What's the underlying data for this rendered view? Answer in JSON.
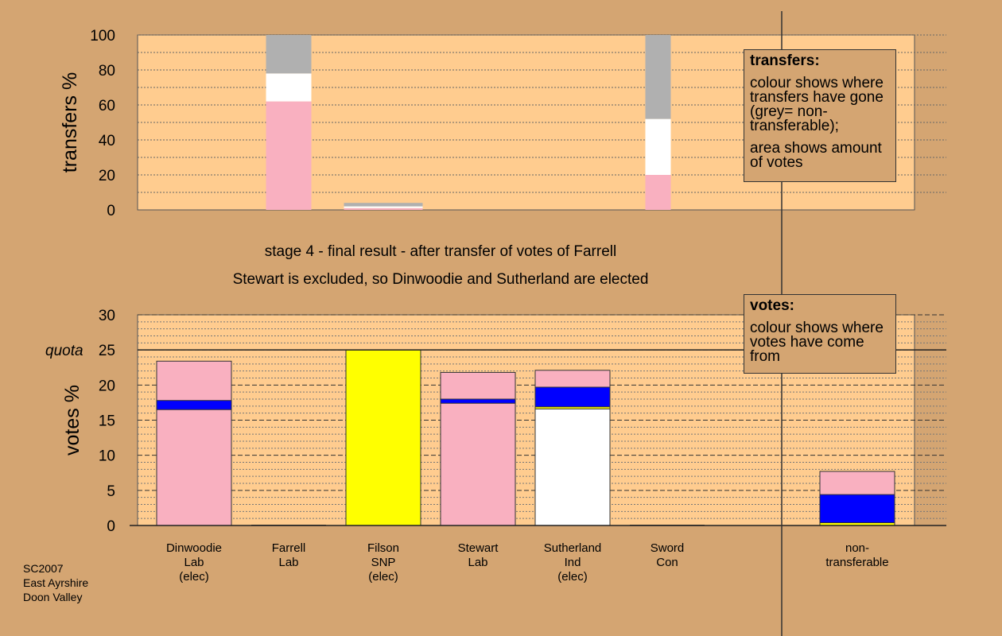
{
  "chart_data": [
    {
      "type": "bar",
      "stacked": true,
      "ylabel": "transfers %",
      "ylim": [
        0,
        100
      ],
      "yticks": [
        0,
        20,
        40,
        60,
        80,
        100
      ],
      "grid": "dotted horizontal",
      "bars": [
        {
          "segments": [
            {
              "colour": "#f9b0c0",
              "value": 62
            },
            {
              "colour": "#ffffff",
              "value": 16
            },
            {
              "colour": "#b0b0b0",
              "value": 22
            }
          ]
        },
        {
          "segments": [
            {
              "colour": "#f9b0c0",
              "value": 1
            },
            {
              "colour": "#ffffff",
              "value": 1
            },
            {
              "colour": "#b0b0b0",
              "value": 2
            }
          ]
        },
        {
          "segments": [
            {
              "colour": "#f9b0c0",
              "value": 20
            },
            {
              "colour": "#ffffff",
              "value": 32
            },
            {
              "colour": "#b0b0b0",
              "value": 48
            }
          ]
        }
      ]
    },
    {
      "type": "bar",
      "stacked": true,
      "ylabel": "votes %",
      "ylim": [
        0,
        30
      ],
      "yticks": [
        0,
        5,
        10,
        15,
        20,
        25,
        30
      ],
      "quota_label": "quota",
      "quota": 25,
      "grid": "dashed horizontal",
      "categories": [
        {
          "lines": [
            "Dinwoodie",
            "Lab",
            "(elec)"
          ]
        },
        {
          "lines": [
            "Farrell",
            "Lab"
          ]
        },
        {
          "lines": [
            "Filson",
            "SNP",
            "(elec)"
          ]
        },
        {
          "lines": [
            "Stewart",
            "Lab"
          ]
        },
        {
          "lines": [
            "Sutherland",
            "Ind",
            "(elec)"
          ]
        },
        {
          "lines": [
            "Sword",
            "Con"
          ]
        },
        {
          "lines": [
            "non-",
            "transferable"
          ]
        }
      ],
      "bars": [
        {
          "segments": [
            {
              "colour": "#f9b0c0",
              "value": 16.5
            },
            {
              "colour": "#0000ff",
              "value": 1.3
            },
            {
              "colour": "#f9b0c0",
              "value": 5.6
            }
          ]
        },
        {
          "segments": []
        },
        {
          "segments": [
            {
              "colour": "#ffff00",
              "value": 25
            }
          ]
        },
        {
          "segments": [
            {
              "colour": "#f9b0c0",
              "value": 17.4
            },
            {
              "colour": "#0000ff",
              "value": 0.6
            },
            {
              "colour": "#f9b0c0",
              "value": 3.8
            }
          ]
        },
        {
          "segments": [
            {
              "colour": "#ffffff",
              "value": 16.6
            },
            {
              "colour": "#ffff00",
              "value": 0.3
            },
            {
              "colour": "#0000ff",
              "value": 2.8
            },
            {
              "colour": "#f9b0c0",
              "value": 2.4
            }
          ]
        },
        {
          "segments": []
        },
        {
          "segments": [
            {
              "colour": "#ffff00",
              "value": 0.4
            },
            {
              "colour": "#0000ff",
              "value": 4.0
            },
            {
              "colour": "#f9b0c0",
              "value": 3.3
            }
          ]
        }
      ]
    }
  ],
  "stage_title": "stage 4 - final result - after transfer of votes of Farrell",
  "stage_subtitle": "Stewart is excluded, so Dinwoodie and Sutherland are elected",
  "legends": {
    "transfers": {
      "title": "transfers:",
      "line1": "colour shows where transfers have gone (grey= non-transferable);",
      "line2": "area shows amount of votes"
    },
    "votes": {
      "title": "votes:",
      "line1": "colour shows where votes have come from"
    }
  },
  "footer": {
    "code": "SC2007",
    "council": "East Ayrshire",
    "ward": "Doon Valley"
  },
  "colors": {
    "background": "#d4a572",
    "plot_area": "#ffcc8f",
    "labour": "#f9b0c0",
    "snp": "#ffff00",
    "conservative": "#0000ff",
    "independent": "#ffffff",
    "non_transferable": "#b0b0b0"
  }
}
